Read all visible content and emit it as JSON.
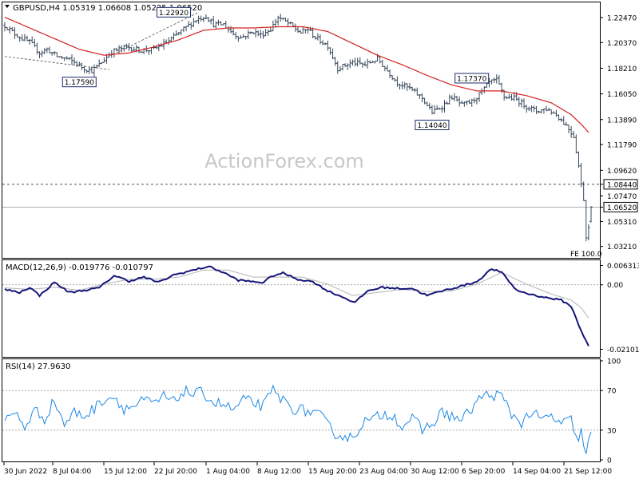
{
  "header": {
    "symbol_line": "GBPUSD,H4  1.05319 1.06608 1.05225 1.06520"
  },
  "watermark": "ActionForex.com",
  "chart_data": [
    {
      "panel": "price",
      "type": "ohlc-bar",
      "title": "GBPUSD,H4",
      "ohlc_last": {
        "open": 1.05319,
        "high": 1.06608,
        "low": 1.05225,
        "close": 1.0652
      },
      "ylim": [
        1.0225,
        1.2375
      ],
      "y_ticks": [
        "1.22470",
        "1.20370",
        "1.18210",
        "1.16050",
        "1.13890",
        "1.11790",
        "1.09620",
        "1.07470",
        "1.05310",
        "1.03210"
      ],
      "x_ticks": [
        "30 Jun 2022",
        "8 Jul 04:00",
        "15 Jul 12:00",
        "22 Jul 20:00",
        "1 Aug 04:00",
        "8 Aug 12:00",
        "15 Aug 20:00",
        "23 Aug 04:00",
        "30 Aug 12:00",
        "6 Sep 20:00",
        "14 Sep 04:00",
        "21 Sep 12:00"
      ],
      "price_knots": [
        [
          0,
          1.218
        ],
        [
          4,
          1.211
        ],
        [
          7,
          1.207
        ],
        [
          10,
          1.204
        ],
        [
          14,
          1.195
        ],
        [
          17,
          1.198
        ],
        [
          21,
          1.192
        ],
        [
          25,
          1.19
        ],
        [
          28,
          1.187
        ],
        [
          32,
          1.182
        ],
        [
          35,
          1.18
        ],
        [
          38,
          1.185
        ],
        [
          43,
          1.196
        ],
        [
          49,
          1.2
        ],
        [
          55,
          1.197
        ],
        [
          60,
          1.198
        ],
        [
          66,
          1.205
        ],
        [
          72,
          1.215
        ],
        [
          77,
          1.223
        ],
        [
          81,
          1.226
        ],
        [
          84,
          1.219
        ],
        [
          88,
          1.219
        ],
        [
          92,
          1.211
        ],
        [
          95,
          1.208
        ],
        [
          100,
          1.213
        ],
        [
          103,
          1.21
        ],
        [
          107,
          1.215
        ],
        [
          110,
          1.225
        ],
        [
          114,
          1.22
        ],
        [
          119,
          1.212
        ],
        [
          122,
          1.215
        ],
        [
          125,
          1.208
        ],
        [
          130,
          1.201
        ],
        [
          134,
          1.182
        ],
        [
          140,
          1.187
        ],
        [
          145,
          1.185
        ],
        [
          150,
          1.19
        ],
        [
          154,
          1.18
        ],
        [
          158,
          1.17
        ],
        [
          163,
          1.165
        ],
        [
          168,
          1.157
        ],
        [
          172,
          1.145
        ],
        [
          176,
          1.15
        ],
        [
          180,
          1.158
        ],
        [
          184,
          1.151
        ],
        [
          188,
          1.154
        ],
        [
          192,
          1.162
        ],
        [
          195,
          1.17
        ],
        [
          198,
          1.172
        ],
        [
          201,
          1.158
        ],
        [
          205,
          1.157
        ],
        [
          210,
          1.15
        ],
        [
          214,
          1.146
        ],
        [
          218,
          1.148
        ],
        [
          222,
          1.143
        ],
        [
          226,
          1.134
        ],
        [
          229,
          1.125
        ],
        [
          231,
          1.1
        ],
        [
          232,
          1.084
        ],
        [
          233,
          1.072
        ],
        [
          234,
          1.04
        ],
        [
          235,
          1.05
        ],
        [
          236,
          1.0652
        ]
      ],
      "ma_knots": [
        [
          0,
          1.225
        ],
        [
          10,
          1.216
        ],
        [
          20,
          1.207
        ],
        [
          30,
          1.198
        ],
        [
          40,
          1.193
        ],
        [
          50,
          1.195
        ],
        [
          60,
          1.2
        ],
        [
          70,
          1.206
        ],
        [
          80,
          1.214
        ],
        [
          90,
          1.216
        ],
        [
          100,
          1.216
        ],
        [
          110,
          1.217
        ],
        [
          120,
          1.217
        ],
        [
          130,
          1.213
        ],
        [
          140,
          1.203
        ],
        [
          150,
          1.193
        ],
        [
          160,
          1.185
        ],
        [
          170,
          1.176
        ],
        [
          180,
          1.168
        ],
        [
          190,
          1.163
        ],
        [
          200,
          1.163
        ],
        [
          210,
          1.159
        ],
        [
          220,
          1.153
        ],
        [
          228,
          1.143
        ],
        [
          232,
          1.135
        ],
        [
          235,
          1.128
        ]
      ],
      "envelope_lines": [
        {
          "from": [
            0,
            1.192
          ],
          "to": [
            42,
            1.181
          ]
        },
        {
          "from": [
            45,
            1.195
          ],
          "to": [
            78,
            1.2292
          ]
        }
      ],
      "horizontal_levels": [
        {
          "value": 1.0844,
          "label": "1.08440",
          "style": "dashed"
        },
        {
          "value": 1.0652,
          "label": "1.06520",
          "style": "solid"
        }
      ],
      "annotations": [
        {
          "label": "1.22920",
          "x": 68,
          "y": 1.2292
        },
        {
          "label": "1.17590",
          "x": 30,
          "y": 1.1759
        },
        {
          "label": "1.17370",
          "x": 188,
          "y": 1.1737
        },
        {
          "label": "1.14040",
          "x": 172,
          "y": 1.1404
        }
      ],
      "fe_label": "FE 100.0",
      "colors": {
        "bars": "#37485a",
        "ma": "#d42020",
        "level_solid": "#b0b0b0",
        "level_dashed": "#555555"
      }
    },
    {
      "panel": "macd",
      "type": "line",
      "title": "MACD(12,26,9) -0.019776 -0.010797",
      "ylim": [
        -0.0235,
        0.008
      ],
      "y_ticks": [
        "0.006313",
        "0.00",
        "-0.021018"
      ],
      "series": [
        {
          "name": "MACD",
          "color": "#15157a",
          "knots": [
            [
              0,
              -0.0015
            ],
            [
              6,
              -0.0025
            ],
            [
              10,
              -0.0008
            ],
            [
              14,
              -0.0035
            ],
            [
              20,
              0.0008
            ],
            [
              26,
              -0.0025
            ],
            [
              32,
              -0.0018
            ],
            [
              38,
              -0.001
            ],
            [
              44,
              0.003
            ],
            [
              50,
              0.0012
            ],
            [
              56,
              0.0025
            ],
            [
              62,
              0.0008
            ],
            [
              68,
              0.0032
            ],
            [
              76,
              0.0048
            ],
            [
              82,
              0.006
            ],
            [
              88,
              0.004
            ],
            [
              94,
              0.0015
            ],
            [
              100,
              0.001
            ],
            [
              104,
              0.0008
            ],
            [
              108,
              0.003
            ],
            [
              112,
              0.0038
            ],
            [
              118,
              0.0018
            ],
            [
              124,
              0.001
            ],
            [
              130,
              -0.002
            ],
            [
              136,
              -0.004
            ],
            [
              141,
              -0.0058
            ],
            [
              146,
              -0.002
            ],
            [
              152,
              -0.0008
            ],
            [
              158,
              -0.0012
            ],
            [
              164,
              -0.0012
            ],
            [
              170,
              -0.0035
            ],
            [
              176,
              -0.002
            ],
            [
              182,
              -0.0008
            ],
            [
              190,
              0.001
            ],
            [
              196,
              0.0052
            ],
            [
              200,
              0.004
            ],
            [
              206,
              -0.0018
            ],
            [
              212,
              -0.0032
            ],
            [
              218,
              -0.0042
            ],
            [
              224,
              -0.005
            ],
            [
              228,
              -0.007
            ],
            [
              232,
              -0.015
            ],
            [
              235,
              -0.0198
            ]
          ]
        },
        {
          "name": "Signal",
          "color": "#b4b4b4",
          "knots": [
            [
              0,
              -0.001
            ],
            [
              10,
              -0.0015
            ],
            [
              20,
              -0.0008
            ],
            [
              30,
              -0.0018
            ],
            [
              40,
              0.0002
            ],
            [
              50,
              0.0018
            ],
            [
              60,
              0.0018
            ],
            [
              70,
              0.0025
            ],
            [
              80,
              0.0048
            ],
            [
              90,
              0.0048
            ],
            [
              100,
              0.0025
            ],
            [
              110,
              0.0025
            ],
            [
              120,
              0.0025
            ],
            [
              130,
              0.0002
            ],
            [
              140,
              -0.0035
            ],
            [
              150,
              -0.0025
            ],
            [
              160,
              -0.0015
            ],
            [
              170,
              -0.0022
            ],
            [
              180,
              -0.002
            ],
            [
              190,
              0.0002
            ],
            [
              200,
              0.004
            ],
            [
              210,
              0.0002
            ],
            [
              220,
              -0.003
            ],
            [
              228,
              -0.005
            ],
            [
              232,
              -0.0075
            ],
            [
              235,
              -0.0108
            ]
          ]
        }
      ]
    },
    {
      "panel": "rsi",
      "type": "line",
      "title": "RSI(14) 27.9630",
      "ylim": [
        0,
        100
      ],
      "y_ticks": [
        "100",
        "70",
        "30",
        "0"
      ],
      "levels": [
        70,
        30
      ],
      "series": [
        {
          "name": "RSI",
          "color": "#1e88e5",
          "knots": [
            [
              0,
              38
            ],
            [
              4,
              48
            ],
            [
              8,
              33
            ],
            [
              12,
              50
            ],
            [
              16,
              42
            ],
            [
              20,
              60
            ],
            [
              24,
              36
            ],
            [
              28,
              48
            ],
            [
              32,
              44
            ],
            [
              36,
              52
            ],
            [
              40,
              62
            ],
            [
              44,
              64
            ],
            [
              48,
              52
            ],
            [
              52,
              54
            ],
            [
              56,
              60
            ],
            [
              60,
              56
            ],
            [
              64,
              64
            ],
            [
              68,
              58
            ],
            [
              72,
              70
            ],
            [
              76,
              66
            ],
            [
              80,
              68
            ],
            [
              84,
              58
            ],
            [
              88,
              56
            ],
            [
              92,
              50
            ],
            [
              96,
              60
            ],
            [
              100,
              58
            ],
            [
              104,
              54
            ],
            [
              108,
              70
            ],
            [
              112,
              60
            ],
            [
              116,
              52
            ],
            [
              120,
              50
            ],
            [
              124,
              48
            ],
            [
              128,
              42
            ],
            [
              132,
              28
            ],
            [
              136,
              24
            ],
            [
              140,
              22
            ],
            [
              144,
              38
            ],
            [
              148,
              40
            ],
            [
              152,
              46
            ],
            [
              156,
              46
            ],
            [
              160,
              34
            ],
            [
              164,
              42
            ],
            [
              168,
              30
            ],
            [
              172,
              36
            ],
            [
              176,
              48
            ],
            [
              180,
              44
            ],
            [
              184,
              40
            ],
            [
              188,
              52
            ],
            [
              192,
              64
            ],
            [
              196,
              66
            ],
            [
              200,
              64
            ],
            [
              204,
              46
            ],
            [
              208,
              38
            ],
            [
              212,
              48
            ],
            [
              216,
              40
            ],
            [
              220,
              44
            ],
            [
              224,
              36
            ],
            [
              228,
              40
            ],
            [
              230,
              20
            ],
            [
              232,
              28
            ],
            [
              234,
              6
            ],
            [
              236,
              28
            ]
          ]
        }
      ]
    }
  ]
}
